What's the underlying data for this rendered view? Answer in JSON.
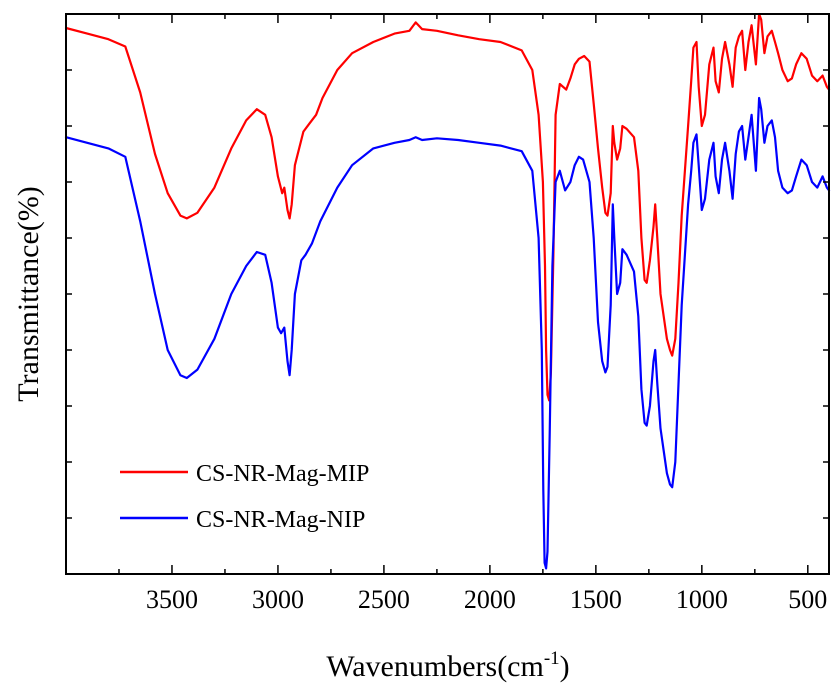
{
  "chart_data": {
    "type": "line",
    "title": "",
    "xlabel": "Wavenumbers(cm",
    "xlabel_superscript": "-1",
    "xlabel_close": ")",
    "ylabel": "Transmittance(%)",
    "xlim": [
      4000,
      400
    ],
    "x_reversed": true,
    "ylim": [
      0,
      100
    ],
    "y_tick_labels_shown": false,
    "y_minor_ticks": 10,
    "x_ticks": [
      3500,
      3000,
      2500,
      2000,
      1500,
      1000,
      500
    ],
    "x_tick_labels": [
      "3500",
      "3000",
      "2500",
      "2000",
      "1500",
      "1000",
      "500"
    ],
    "grid": false,
    "legend_position": "bottom-left",
    "series": [
      {
        "name": "CS-NR-Mag-MIP",
        "color": "#ff0000",
        "points": [
          [
            4000,
            97.5
          ],
          [
            3900,
            96.5
          ],
          [
            3800,
            95.5
          ],
          [
            3720,
            94.2
          ],
          [
            3650,
            86
          ],
          [
            3580,
            75
          ],
          [
            3520,
            68
          ],
          [
            3460,
            64
          ],
          [
            3430,
            63.5
          ],
          [
            3380,
            64.5
          ],
          [
            3300,
            69
          ],
          [
            3220,
            76
          ],
          [
            3150,
            81
          ],
          [
            3100,
            83
          ],
          [
            3060,
            82
          ],
          [
            3030,
            78
          ],
          [
            3000,
            71
          ],
          [
            2980,
            68
          ],
          [
            2970,
            69
          ],
          [
            2955,
            65
          ],
          [
            2945,
            63.5
          ],
          [
            2935,
            66
          ],
          [
            2920,
            73
          ],
          [
            2880,
            79
          ],
          [
            2850,
            80.5
          ],
          [
            2820,
            82
          ],
          [
            2790,
            85
          ],
          [
            2720,
            90
          ],
          [
            2650,
            93
          ],
          [
            2550,
            95
          ],
          [
            2450,
            96.5
          ],
          [
            2380,
            97
          ],
          [
            2350,
            98.5
          ],
          [
            2320,
            97.3
          ],
          [
            2250,
            97
          ],
          [
            2150,
            96.2
          ],
          [
            2050,
            95.5
          ],
          [
            1950,
            95
          ],
          [
            1850,
            93.5
          ],
          [
            1800,
            90
          ],
          [
            1770,
            82
          ],
          [
            1750,
            70
          ],
          [
            1740,
            55
          ],
          [
            1735,
            40
          ],
          [
            1728,
            32
          ],
          [
            1720,
            31
          ],
          [
            1712,
            36
          ],
          [
            1700,
            58
          ],
          [
            1690,
            82
          ],
          [
            1670,
            87.5
          ],
          [
            1640,
            86.5
          ],
          [
            1620,
            88.5
          ],
          [
            1600,
            91
          ],
          [
            1580,
            92
          ],
          [
            1555,
            92.5
          ],
          [
            1530,
            91.5
          ],
          [
            1510,
            84
          ],
          [
            1490,
            76
          ],
          [
            1470,
            69
          ],
          [
            1455,
            64.5
          ],
          [
            1445,
            64
          ],
          [
            1430,
            68
          ],
          [
            1420,
            80
          ],
          [
            1413,
            77
          ],
          [
            1400,
            74
          ],
          [
            1385,
            76
          ],
          [
            1375,
            80
          ],
          [
            1355,
            79.5
          ],
          [
            1320,
            78
          ],
          [
            1300,
            72
          ],
          [
            1285,
            60
          ],
          [
            1270,
            52.5
          ],
          [
            1260,
            52
          ],
          [
            1245,
            56
          ],
          [
            1228,
            62
          ],
          [
            1220,
            66
          ],
          [
            1210,
            60
          ],
          [
            1195,
            50
          ],
          [
            1180,
            46
          ],
          [
            1165,
            42
          ],
          [
            1150,
            40
          ],
          [
            1140,
            39
          ],
          [
            1125,
            42
          ],
          [
            1110,
            52
          ],
          [
            1095,
            64
          ],
          [
            1080,
            72
          ],
          [
            1065,
            80
          ],
          [
            1050,
            88
          ],
          [
            1040,
            94
          ],
          [
            1025,
            95
          ],
          [
            1015,
            87
          ],
          [
            1000,
            80
          ],
          [
            985,
            82
          ],
          [
            965,
            91
          ],
          [
            945,
            94
          ],
          [
            935,
            88
          ],
          [
            920,
            86
          ],
          [
            905,
            92
          ],
          [
            890,
            95
          ],
          [
            870,
            91
          ],
          [
            855,
            87
          ],
          [
            840,
            94
          ],
          [
            825,
            96
          ],
          [
            810,
            97
          ],
          [
            795,
            90
          ],
          [
            780,
            95
          ],
          [
            765,
            98
          ],
          [
            745,
            91
          ],
          [
            730,
            100
          ],
          [
            720,
            99
          ],
          [
            705,
            93
          ],
          [
            690,
            96
          ],
          [
            670,
            97
          ],
          [
            655,
            95
          ],
          [
            640,
            93
          ],
          [
            620,
            90
          ],
          [
            595,
            88
          ],
          [
            575,
            88.5
          ],
          [
            555,
            91
          ],
          [
            530,
            93
          ],
          [
            505,
            92
          ],
          [
            480,
            89
          ],
          [
            455,
            88
          ],
          [
            430,
            89
          ],
          [
            410,
            87
          ],
          [
            400,
            86.5
          ]
        ]
      },
      {
        "name": "CS-NR-Mag-NIP",
        "color": "#0000ff",
        "points": [
          [
            4000,
            78
          ],
          [
            3900,
            77
          ],
          [
            3800,
            76
          ],
          [
            3720,
            74.5
          ],
          [
            3650,
            63
          ],
          [
            3580,
            50
          ],
          [
            3520,
            40
          ],
          [
            3460,
            35.5
          ],
          [
            3430,
            35
          ],
          [
            3380,
            36.5
          ],
          [
            3300,
            42
          ],
          [
            3220,
            50
          ],
          [
            3150,
            55
          ],
          [
            3100,
            57.5
          ],
          [
            3060,
            57
          ],
          [
            3030,
            52
          ],
          [
            3000,
            44
          ],
          [
            2985,
            43
          ],
          [
            2970,
            44
          ],
          [
            2955,
            38
          ],
          [
            2945,
            35.5
          ],
          [
            2935,
            40
          ],
          [
            2920,
            50
          ],
          [
            2890,
            56
          ],
          [
            2870,
            57
          ],
          [
            2840,
            59
          ],
          [
            2800,
            63
          ],
          [
            2720,
            69
          ],
          [
            2650,
            73
          ],
          [
            2550,
            76
          ],
          [
            2450,
            77
          ],
          [
            2380,
            77.5
          ],
          [
            2350,
            78
          ],
          [
            2320,
            77.5
          ],
          [
            2250,
            77.8
          ],
          [
            2150,
            77.5
          ],
          [
            2050,
            77
          ],
          [
            1950,
            76.5
          ],
          [
            1850,
            75.5
          ],
          [
            1800,
            72
          ],
          [
            1770,
            60
          ],
          [
            1755,
            40
          ],
          [
            1748,
            15
          ],
          [
            1742,
            2
          ],
          [
            1735,
            1
          ],
          [
            1728,
            4
          ],
          [
            1718,
            25
          ],
          [
            1705,
            55
          ],
          [
            1690,
            70
          ],
          [
            1670,
            72
          ],
          [
            1645,
            68.5
          ],
          [
            1620,
            70
          ],
          [
            1600,
            73
          ],
          [
            1580,
            74.5
          ],
          [
            1560,
            74
          ],
          [
            1530,
            70
          ],
          [
            1510,
            60
          ],
          [
            1490,
            45
          ],
          [
            1470,
            38
          ],
          [
            1455,
            36
          ],
          [
            1445,
            37
          ],
          [
            1430,
            48
          ],
          [
            1420,
            66
          ],
          [
            1413,
            60
          ],
          [
            1400,
            50
          ],
          [
            1385,
            52
          ],
          [
            1375,
            58
          ],
          [
            1355,
            57
          ],
          [
            1320,
            54
          ],
          [
            1300,
            46
          ],
          [
            1285,
            33
          ],
          [
            1270,
            27
          ],
          [
            1260,
            26.5
          ],
          [
            1245,
            30
          ],
          [
            1228,
            38
          ],
          [
            1220,
            40
          ],
          [
            1210,
            34
          ],
          [
            1195,
            26
          ],
          [
            1180,
            22
          ],
          [
            1165,
            18
          ],
          [
            1150,
            16
          ],
          [
            1140,
            15.5
          ],
          [
            1125,
            20
          ],
          [
            1110,
            34
          ],
          [
            1095,
            48
          ],
          [
            1080,
            57
          ],
          [
            1065,
            66
          ],
          [
            1050,
            72
          ],
          [
            1040,
            77
          ],
          [
            1025,
            78.5
          ],
          [
            1015,
            73
          ],
          [
            1000,
            65
          ],
          [
            985,
            67
          ],
          [
            965,
            74
          ],
          [
            945,
            77
          ],
          [
            935,
            71
          ],
          [
            920,
            68
          ],
          [
            905,
            74
          ],
          [
            890,
            77
          ],
          [
            870,
            72
          ],
          [
            855,
            67
          ],
          [
            840,
            75
          ],
          [
            825,
            79
          ],
          [
            810,
            80
          ],
          [
            795,
            74
          ],
          [
            780,
            78
          ],
          [
            765,
            82
          ],
          [
            745,
            72
          ],
          [
            730,
            85
          ],
          [
            720,
            83
          ],
          [
            705,
            77
          ],
          [
            690,
            80
          ],
          [
            670,
            81
          ],
          [
            655,
            78
          ],
          [
            640,
            72
          ],
          [
            620,
            69
          ],
          [
            595,
            68
          ],
          [
            575,
            68.5
          ],
          [
            555,
            71
          ],
          [
            530,
            74
          ],
          [
            505,
            73
          ],
          [
            480,
            70
          ],
          [
            455,
            69
          ],
          [
            430,
            71
          ],
          [
            410,
            69
          ],
          [
            400,
            68.5
          ]
        ]
      }
    ]
  }
}
